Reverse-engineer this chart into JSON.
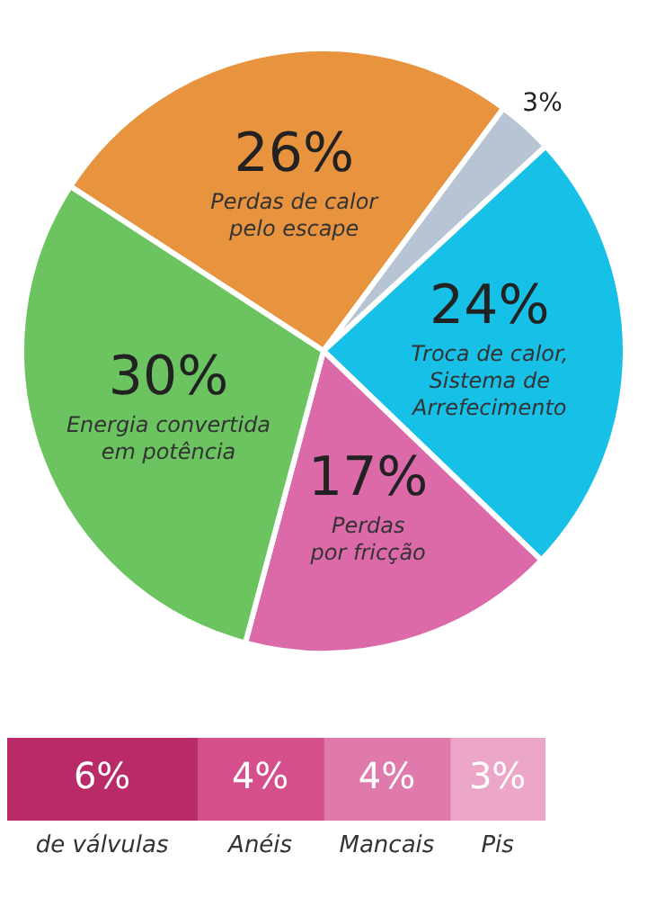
{
  "chart_data": [
    {
      "type": "pie",
      "categories": [
        "Perdas de calor\npelo escape",
        null,
        "Troca de calor,\nSistema de\nArrefecimento",
        "Perdas\npor fricção",
        "Energia convertida\nem potência"
      ],
      "values": [
        26,
        3,
        24,
        17,
        30
      ],
      "colors": [
        "#e8943f",
        "#b7c4d3",
        "#16c0e6",
        "#dc6aa8",
        "#6cc461"
      ],
      "value_labels": [
        "26%",
        "3%",
        "24%",
        "17%",
        "30%"
      ]
    },
    {
      "type": "bar",
      "orientation": "horizontal",
      "stacked": true,
      "categories": [
        null
      ],
      "series": [
        {
          "name": "de válvulas",
          "color": "#b82a68",
          "values": [
            6
          ],
          "value_labels": [
            "6%"
          ]
        },
        {
          "name": "Anéis",
          "color": "#d44f8c",
          "values": [
            4
          ],
          "value_labels": [
            "4%"
          ]
        },
        {
          "name": "Mancais",
          "color": "#e07aac",
          "values": [
            4
          ],
          "value_labels": [
            "4%"
          ]
        },
        {
          "name": "Pis",
          "color": "#eba6c8",
          "values": [
            3
          ],
          "value_labels": [
            "3%"
          ]
        }
      ]
    }
  ]
}
